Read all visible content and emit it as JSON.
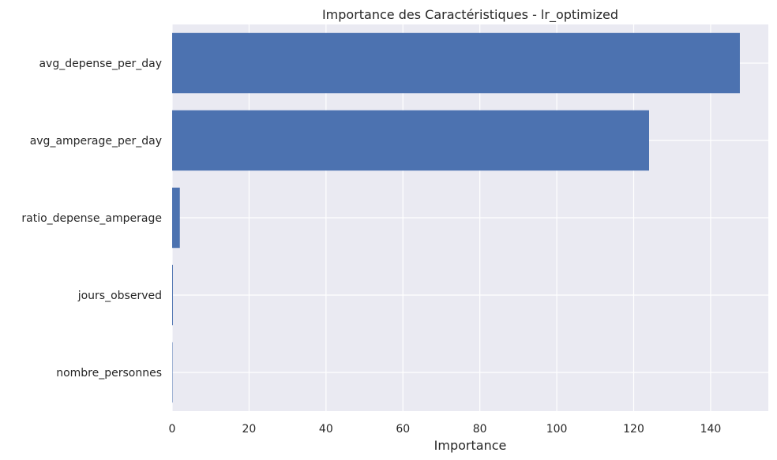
{
  "chart_data": {
    "type": "bar",
    "orientation": "horizontal",
    "title": "Importance des Caractéristiques - lr_optimized",
    "xlabel": "Importance",
    "ylabel": "",
    "categories": [
      "avg_depense_per_day",
      "avg_amperage_per_day",
      "ratio_depense_amperage",
      "jours_observed",
      "nombre_personnes"
    ],
    "values": [
      147.6,
      124.0,
      2.0,
      0.2,
      0.1
    ],
    "xlim": [
      0,
      155
    ],
    "xticks": [
      0,
      20,
      40,
      60,
      80,
      100,
      120,
      140
    ],
    "grid": true,
    "colors": {
      "bar": "#4c72b0",
      "plot_background": "#eaeaf2",
      "grid": "#ffffff"
    }
  }
}
